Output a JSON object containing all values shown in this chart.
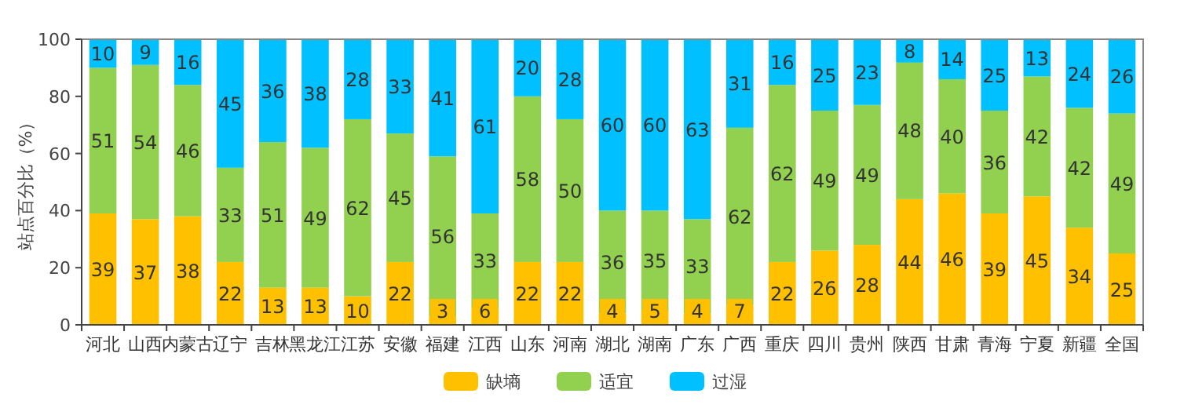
{
  "chart_data": {
    "type": "bar",
    "stacked": true,
    "ylabel": "站点百分比（%）",
    "categories": [
      "河北",
      "山西",
      "内蒙古",
      "辽宁",
      "吉林",
      "黑龙江",
      "江苏",
      "安徽",
      "福建",
      "江西",
      "山东",
      "河南",
      "湖北",
      "湖南",
      "广东",
      "广西",
      "重庆",
      "四川",
      "贵州",
      "陕西",
      "甘肃",
      "青海",
      "宁夏",
      "新疆",
      "全国"
    ],
    "series": [
      {
        "name": "缺墒",
        "color": "#ffc000",
        "values": [
          39,
          37,
          38,
          22,
          13,
          13,
          10,
          22,
          3,
          6,
          22,
          22,
          4,
          5,
          4,
          7,
          22,
          26,
          28,
          44,
          46,
          39,
          45,
          34,
          25
        ]
      },
      {
        "name": "适宜",
        "color": "#92d050",
        "values": [
          51,
          54,
          46,
          33,
          51,
          49,
          62,
          45,
          56,
          33,
          58,
          50,
          36,
          35,
          33,
          62,
          62,
          49,
          49,
          48,
          40,
          36,
          42,
          42,
          49
        ]
      },
      {
        "name": "过湿",
        "color": "#00c0ff",
        "values": [
          10,
          9,
          16,
          45,
          36,
          38,
          28,
          33,
          41,
          61,
          20,
          28,
          60,
          60,
          63,
          31,
          16,
          25,
          23,
          8,
          14,
          25,
          13,
          24,
          26
        ]
      }
    ],
    "ylim": [
      0,
      100
    ],
    "yticks": [
      0,
      20,
      40,
      60,
      80,
      100
    ],
    "grid": false,
    "data_labels": true,
    "legend": "bottom"
  }
}
